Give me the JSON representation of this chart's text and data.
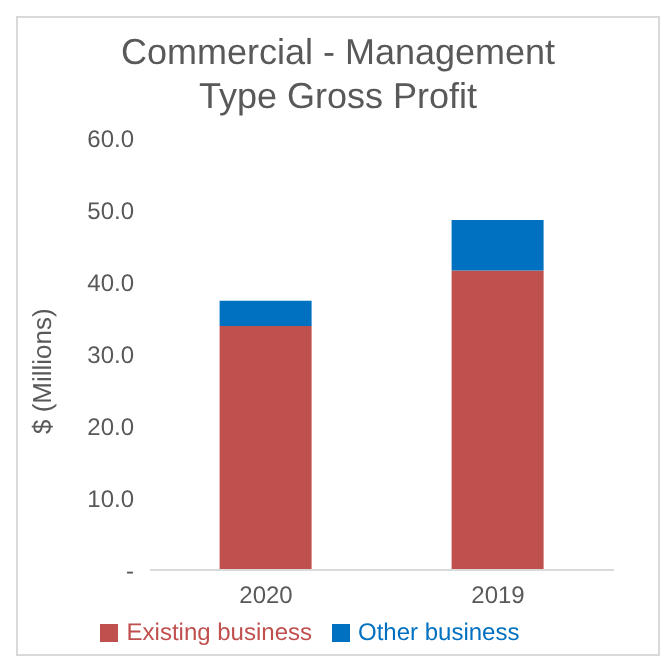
{
  "chart_data": {
    "type": "bar",
    "title": "Commercial - Management Type Gross Profit",
    "ylabel": "$ (Millions)",
    "categories": [
      "2020",
      "2019"
    ],
    "stacked": true,
    "series": [
      {
        "name": "Existing business",
        "color": "#c0504d",
        "values": [
          33.9,
          41.6
        ]
      },
      {
        "name": "Other business",
        "color": "#0070c0",
        "values": [
          3.5,
          7.0
        ]
      }
    ],
    "ylim": [
      0,
      60
    ],
    "yticks": [
      {
        "value": 0,
        "label": "-"
      },
      {
        "value": 10,
        "label": "10.0"
      },
      {
        "value": 20,
        "label": "20.0"
      },
      {
        "value": 30,
        "label": "30.0"
      },
      {
        "value": 40,
        "label": "40.0"
      },
      {
        "value": 50,
        "label": "50.0"
      },
      {
        "value": 60,
        "label": "60.0"
      }
    ],
    "grid": false,
    "legend": "bottom"
  }
}
